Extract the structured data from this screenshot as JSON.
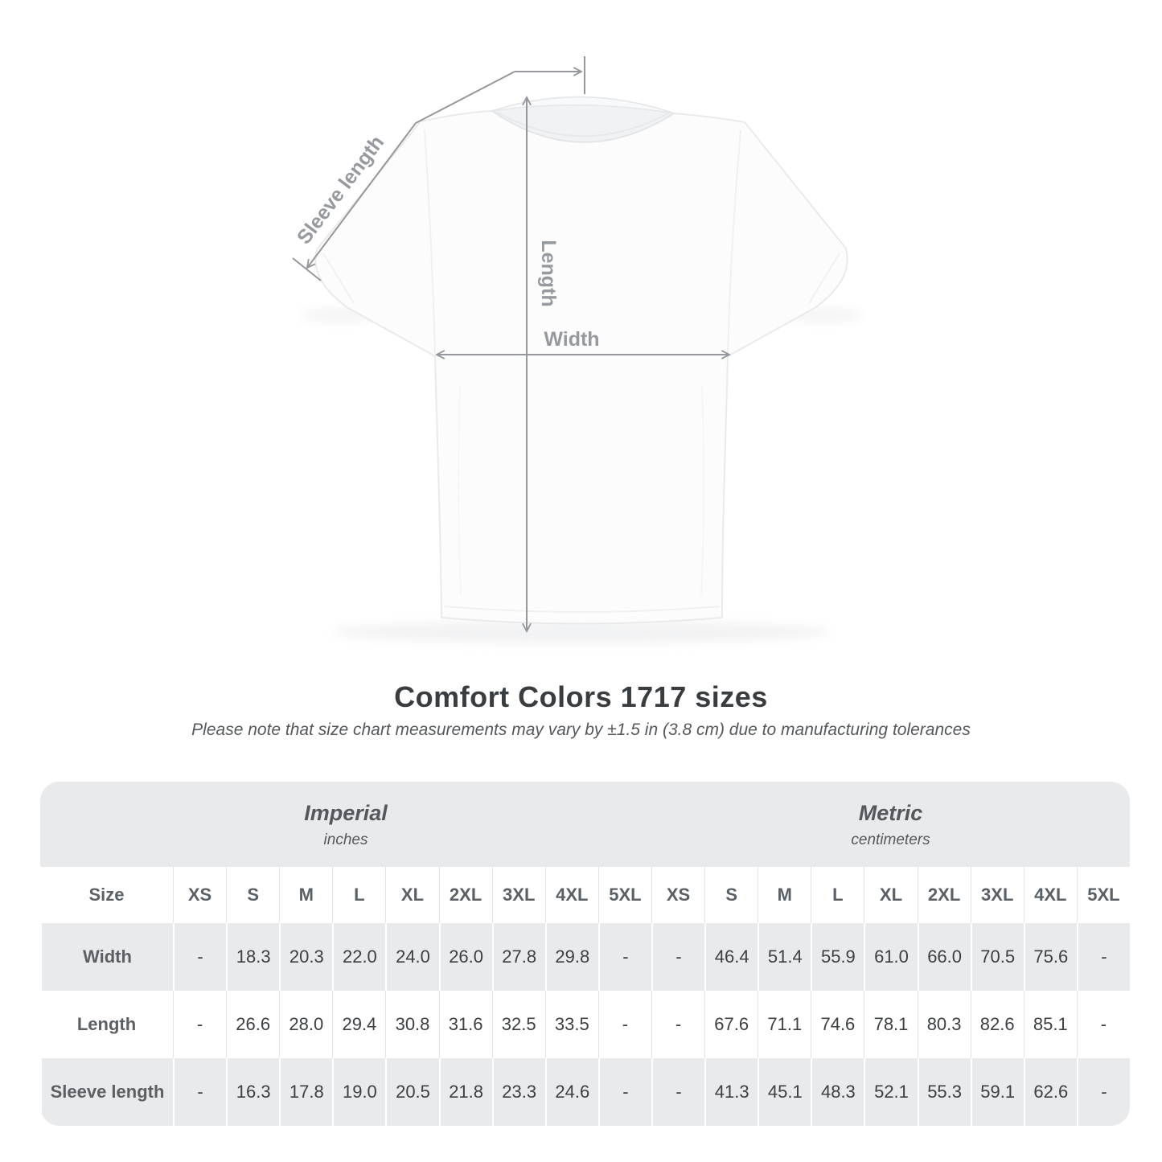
{
  "title": "Comfort Colors 1717 sizes",
  "subtitle": "Please note that size chart measurements may vary by ±1.5 in (3.8 cm) due to manufacturing tolerances",
  "diagram": {
    "sleeve_label": "Sleeve length",
    "length_label": "Length",
    "width_label": "Width"
  },
  "size_table": {
    "unit_groups": [
      {
        "name": "Imperial",
        "unit": "inches"
      },
      {
        "name": "Metric",
        "unit": "centimeters"
      }
    ],
    "size_header": "Size",
    "sizes": [
      "XS",
      "S",
      "M",
      "L",
      "XL",
      "2XL",
      "3XL",
      "4XL",
      "5XL"
    ],
    "rows": [
      {
        "label": "Width",
        "imperial": [
          "-",
          "18.3",
          "20.3",
          "22.0",
          "24.0",
          "26.0",
          "27.8",
          "29.8",
          "-"
        ],
        "metric": [
          "-",
          "46.4",
          "51.4",
          "55.9",
          "61.0",
          "66.0",
          "70.5",
          "75.6",
          "-"
        ]
      },
      {
        "label": "Length",
        "imperial": [
          "-",
          "26.6",
          "28.0",
          "29.4",
          "30.8",
          "31.6",
          "32.5",
          "33.5",
          "-"
        ],
        "metric": [
          "-",
          "67.6",
          "71.1",
          "74.6",
          "78.1",
          "80.3",
          "82.6",
          "85.1",
          "-"
        ]
      },
      {
        "label": "Sleeve length",
        "imperial": [
          "-",
          "16.3",
          "17.8",
          "19.0",
          "20.5",
          "21.8",
          "23.3",
          "24.6",
          "-"
        ],
        "metric": [
          "-",
          "41.3",
          "45.1",
          "48.3",
          "52.1",
          "55.3",
          "59.1",
          "62.6",
          "-"
        ]
      }
    ]
  },
  "colors": {
    "measurement_line": "#94989c",
    "measurement_label": "#969a9e",
    "table_band": "#e9eaec",
    "header_text": "#5b6065",
    "value_text": "#3c4043",
    "title_text": "#3a3d40"
  }
}
